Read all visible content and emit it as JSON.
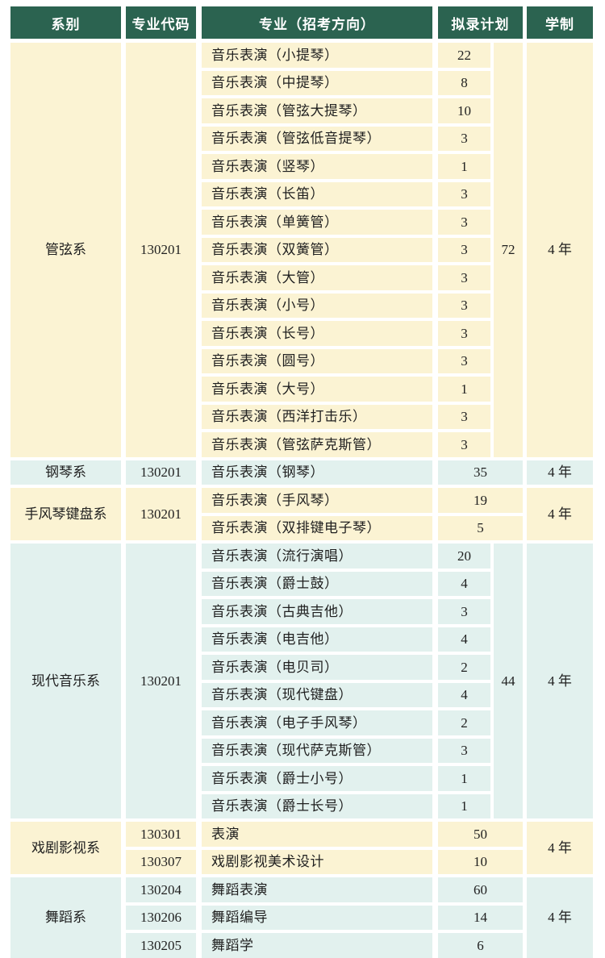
{
  "table": {
    "headers": {
      "department": "系别",
      "code": "专业代码",
      "major": "专业（招考方向）",
      "plan": "拟录计划",
      "duration": "学制"
    },
    "colors": {
      "header_bg": "#2B6350",
      "header_text": "#FFFFFF",
      "section_yellow": "#FBF3D3",
      "section_blue": "#E2F1EE",
      "text": "#1F1F1F"
    },
    "sections": [
      {
        "department": "管弦系",
        "code": "130201",
        "theme": "yellow",
        "total": "72",
        "duration": "4 年",
        "rows": [
          {
            "major": "音乐表演（小提琴）",
            "plan": "22"
          },
          {
            "major": "音乐表演（中提琴）",
            "plan": "8"
          },
          {
            "major": "音乐表演（管弦大提琴）",
            "plan": "10"
          },
          {
            "major": "音乐表演（管弦低音提琴）",
            "plan": "3"
          },
          {
            "major": "音乐表演（竖琴）",
            "plan": "1"
          },
          {
            "major": "音乐表演（长笛）",
            "plan": "3"
          },
          {
            "major": "音乐表演（单簧管）",
            "plan": "3"
          },
          {
            "major": "音乐表演（双簧管）",
            "plan": "3"
          },
          {
            "major": "音乐表演（大管）",
            "plan": "3"
          },
          {
            "major": "音乐表演（小号）",
            "plan": "3"
          },
          {
            "major": "音乐表演（长号）",
            "plan": "3"
          },
          {
            "major": "音乐表演（圆号）",
            "plan": "3"
          },
          {
            "major": "音乐表演（大号）",
            "plan": "1"
          },
          {
            "major": "音乐表演（西洋打击乐）",
            "plan": "3"
          },
          {
            "major": "音乐表演（管弦萨克斯管）",
            "plan": "3"
          }
        ]
      },
      {
        "department": "钢琴系",
        "code": "130201",
        "theme": "blue",
        "total": null,
        "duration": "4 年",
        "rows": [
          {
            "major": "音乐表演（钢琴）",
            "plan": "35"
          }
        ]
      },
      {
        "department": "手风琴键盘系",
        "code": "130201",
        "theme": "yellow",
        "total": null,
        "duration": "4 年",
        "rows": [
          {
            "major": "音乐表演（手风琴）",
            "plan": "19"
          },
          {
            "major": "音乐表演（双排键电子琴）",
            "plan": "5"
          }
        ]
      },
      {
        "department": "现代音乐系",
        "code": "130201",
        "theme": "blue",
        "total": "44",
        "duration": "4 年",
        "rows": [
          {
            "major": "音乐表演（流行演唱）",
            "plan": "20"
          },
          {
            "major": "音乐表演（爵士鼓）",
            "plan": "4"
          },
          {
            "major": "音乐表演（古典吉他）",
            "plan": "3"
          },
          {
            "major": "音乐表演（电吉他）",
            "plan": "4"
          },
          {
            "major": "音乐表演（电贝司）",
            "plan": "2"
          },
          {
            "major": "音乐表演（现代键盘）",
            "plan": "4"
          },
          {
            "major": "音乐表演（电子手风琴）",
            "plan": "2"
          },
          {
            "major": "音乐表演（现代萨克斯管）",
            "plan": "3"
          },
          {
            "major": "音乐表演（爵士小号）",
            "plan": "1"
          },
          {
            "major": "音乐表演（爵士长号）",
            "plan": "1"
          }
        ]
      },
      {
        "department": "戏剧影视系",
        "code": null,
        "theme": "yellow",
        "total": null,
        "duration": "4 年",
        "rows": [
          {
            "code": "130301",
            "major": "表演",
            "plan": "50"
          },
          {
            "code": "130307",
            "major": "戏剧影视美术设计",
            "plan": "10"
          }
        ]
      },
      {
        "department": "舞蹈系",
        "code": null,
        "theme": "blue",
        "total": null,
        "duration": "4 年",
        "rows": [
          {
            "code": "130204",
            "major": "舞蹈表演",
            "plan": "60"
          },
          {
            "code": "130206",
            "major": "舞蹈编导",
            "plan": "14"
          },
          {
            "code": "130205",
            "major": "舞蹈学",
            "plan": "6"
          }
        ]
      }
    ]
  }
}
